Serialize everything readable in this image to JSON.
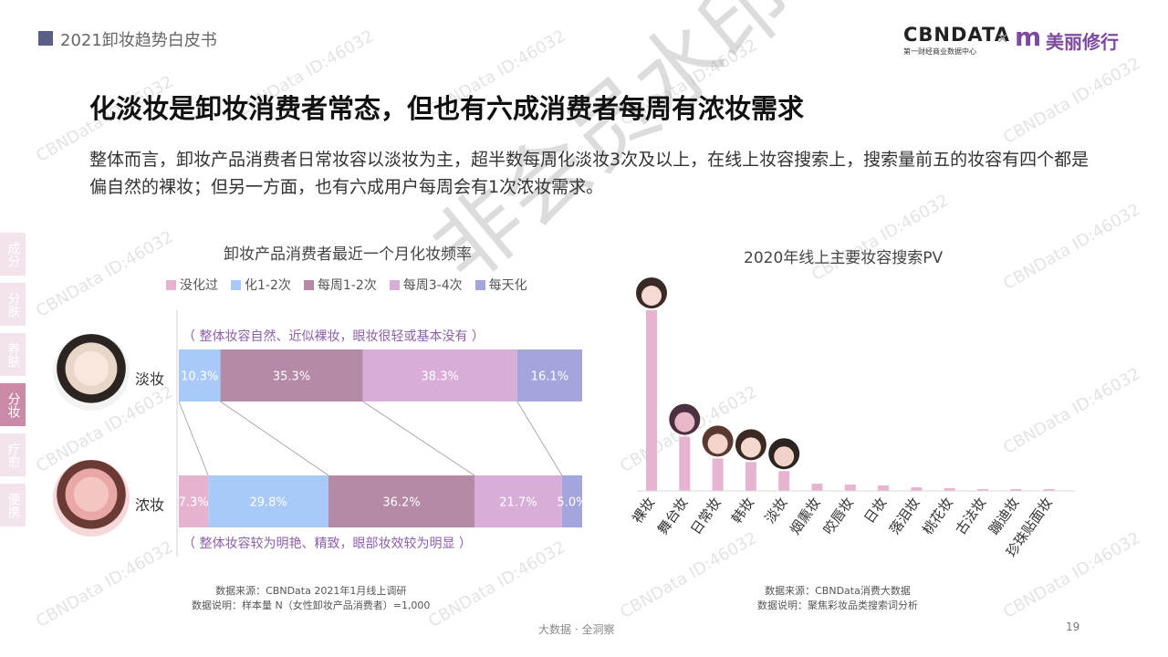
{
  "header": {
    "report_title": "2021卸妆趋势白皮书",
    "logo_cbn": "CBNDATA",
    "logo_cbn_sub": "第一财经商业数据中心",
    "logo_x": "×",
    "logo_m": "m",
    "logo_partner": "美丽修行"
  },
  "headline": "化淡妆是卸妆消费者常态，但也有六成消费者每周有浓妆需求",
  "body_text": "整体而言，卸妆产品消费者日常妆容以淡妆为主，超半数每周化淡妆3次及以上，在线上妆容搜索上，搜索量前五的妆容有四个都是偏自然的裸妆；但另一方面，也有六成用户每周会有1次浓妆需求。",
  "side_tabs": [
    {
      "label": "成分",
      "active": false
    },
    {
      "label": "分肤",
      "active": false
    },
    {
      "label": "养肤",
      "active": false
    },
    {
      "label": "分妆",
      "active": true
    },
    {
      "label": "疗愈",
      "active": false
    },
    {
      "label": "便携",
      "active": false
    }
  ],
  "watermark": {
    "big": "非会员水印",
    "id": "CBNData ID:46032"
  },
  "left_chart": {
    "title": "卸妆产品消费者最近一个月化妆频率",
    "colors": [
      "#e6b3cf",
      "#a9c9f9",
      "#b58aa6",
      "#d8aed8",
      "#a3a6dc"
    ],
    "row_labels": [
      "淡妆",
      "浓妆"
    ],
    "annotations": [
      "（ 整体妆容自然、近似裸妆，眼妆很轻或基本没有 ）",
      "（ 整体妆容较为明艳、精致，眼部妆效较为明显 ）"
    ],
    "source_line1": "数据来源：CBNData 2021年1月线上调研",
    "source_line2": "数据说明：样本量 N（女性卸妆产品消费者）=1,000"
  },
  "right_chart": {
    "title": "2020年线上主要妆容搜索PV",
    "source_line1": "数据来源：CBNData消费大数据",
    "source_line2": "数据说明：聚焦彩妆品类搜索词分析"
  },
  "chart_data": [
    {
      "type": "bar",
      "orientation": "horizontal",
      "stacked": true,
      "percent": true,
      "title": "卸妆产品消费者最近一个月化妆频率",
      "categories": [
        "淡妆",
        "浓妆"
      ],
      "series": [
        {
          "name": "没化过",
          "values": [
            0,
            7.3
          ],
          "labels": [
            "",
            "7.3%"
          ]
        },
        {
          "name": "化1-2次",
          "values": [
            10.3,
            29.8
          ],
          "labels": [
            "10.3%",
            "29.8%"
          ]
        },
        {
          "name": "每周1-2次",
          "values": [
            35.3,
            36.2
          ],
          "labels": [
            "35.3%",
            "36.2%"
          ]
        },
        {
          "name": "每周3-4次",
          "values": [
            38.3,
            21.7
          ],
          "labels": [
            "38.3%",
            "21.7%"
          ]
        },
        {
          "name": "每天化",
          "values": [
            16.1,
            5.0
          ],
          "labels": [
            "16.1%",
            "5.0%"
          ]
        }
      ],
      "legend_position": "top",
      "grid": false
    },
    {
      "type": "bar",
      "title": "2020年线上主要妆容搜索PV",
      "categories": [
        "裸妆",
        "舞台妆",
        "日常妆",
        "韩妆",
        "淡妆",
        "烟熏妆",
        "咬唇妆",
        "日妆",
        "落泪妆",
        "桃花妆",
        "古法妆",
        "蹦迪妆",
        "珍珠贴面妆"
      ],
      "values": [
        100,
        30,
        18,
        16,
        11,
        4,
        3.5,
        3,
        2,
        1.5,
        1,
        0.8,
        0.6
      ],
      "ylim": [
        0,
        100
      ],
      "grid": false,
      "ytick_labels": false
    }
  ],
  "footer": {
    "center": "大数据 · 全洞察",
    "page": "19"
  }
}
